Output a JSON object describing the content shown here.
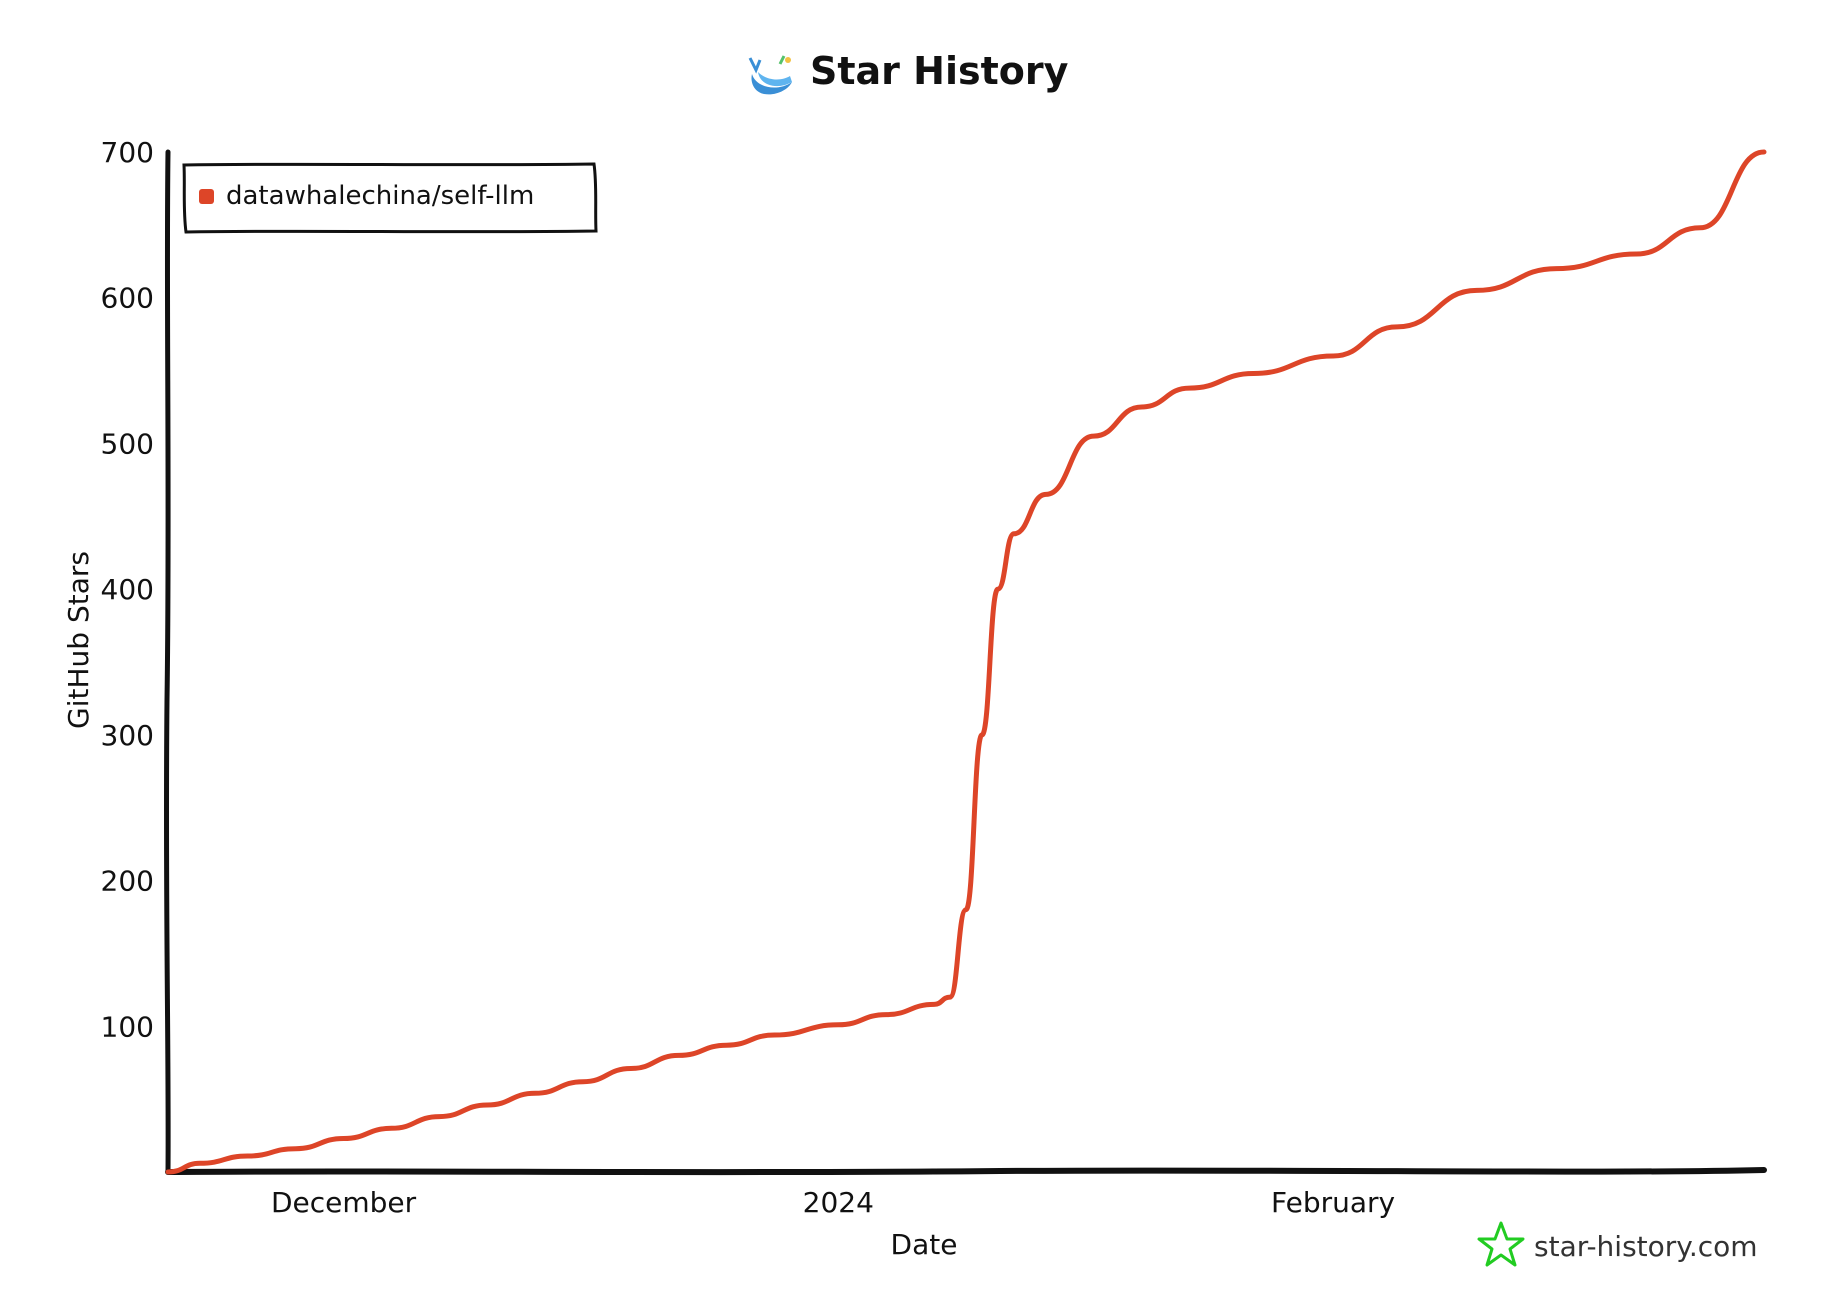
{
  "chart_data": {
    "type": "line",
    "title": "Star History",
    "xlabel": "Date",
    "ylabel": "GitHub Stars",
    "x_ticks": [
      {
        "label": "December",
        "date": "2023-12-01"
      },
      {
        "label": "2024",
        "date": "2024-01-01"
      },
      {
        "label": "February",
        "date": "2024-02-01"
      }
    ],
    "y_ticks": [
      100,
      200,
      300,
      400,
      500,
      600,
      700
    ],
    "xlim": [
      "2023-11-20",
      "2024-02-28"
    ],
    "ylim": [
      0,
      700
    ],
    "grid": false,
    "legend_position": "top-left",
    "series": [
      {
        "name": "datawhalechina/self-llm",
        "color": "#dd4528",
        "x": [
          "2023-11-20",
          "2023-11-22",
          "2023-11-25",
          "2023-11-28",
          "2023-12-01",
          "2023-12-04",
          "2023-12-07",
          "2023-12-10",
          "2023-12-13",
          "2023-12-16",
          "2023-12-19",
          "2023-12-22",
          "2023-12-25",
          "2023-12-28",
          "2024-01-01",
          "2024-01-04",
          "2024-01-07",
          "2024-01-08",
          "2024-01-09",
          "2024-01-10",
          "2024-01-11",
          "2024-01-12",
          "2024-01-14",
          "2024-01-17",
          "2024-01-20",
          "2024-01-23",
          "2024-01-27",
          "2024-02-01",
          "2024-02-05",
          "2024-02-10",
          "2024-02-15",
          "2024-02-20",
          "2024-02-24",
          "2024-02-28"
        ],
        "y": [
          0,
          6,
          11,
          16,
          23,
          30,
          38,
          46,
          54,
          62,
          71,
          80,
          87,
          94,
          101,
          108,
          115,
          120,
          180,
          300,
          400,
          438,
          465,
          505,
          525,
          538,
          548,
          560,
          580,
          605,
          620,
          630,
          648,
          700
        ]
      }
    ]
  },
  "brand": {
    "text": "star-history.com",
    "logo_icon": "star-icon",
    "title_icon": "whale-icon"
  }
}
